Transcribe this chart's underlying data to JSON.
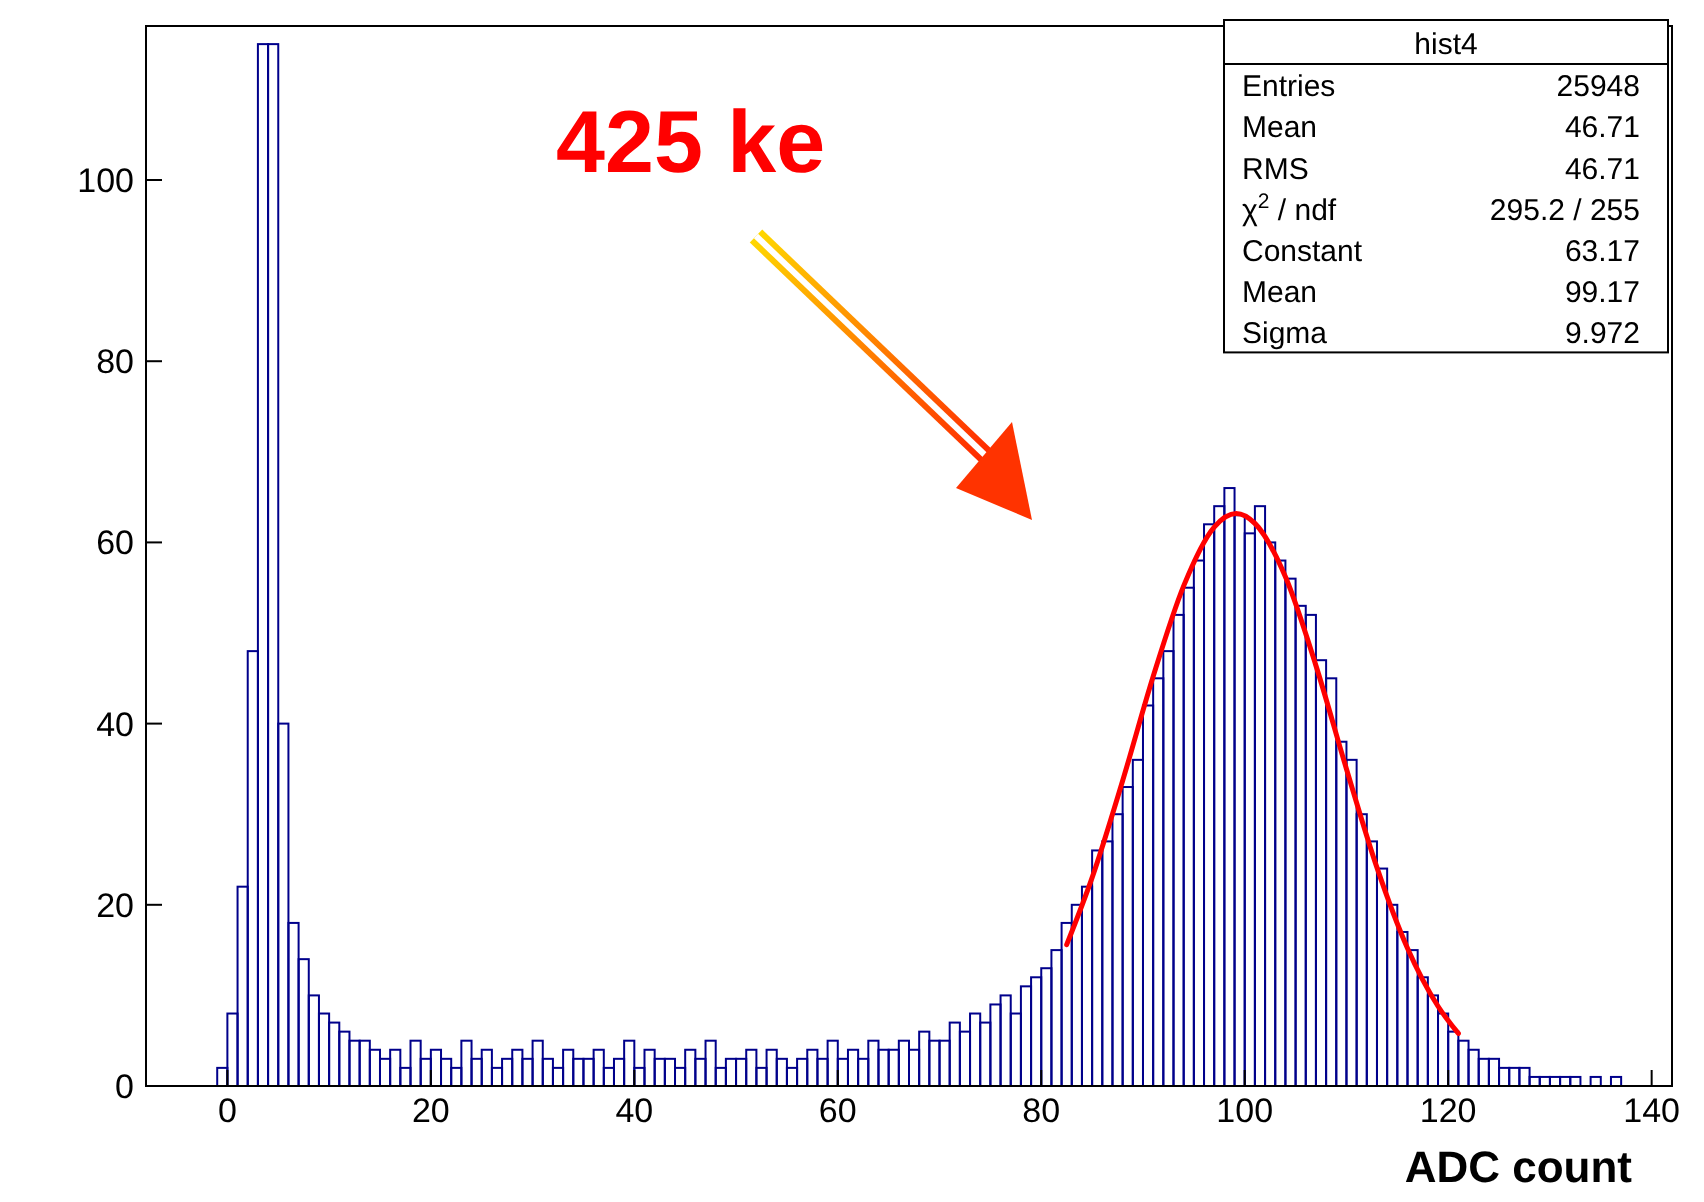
{
  "chart_data": {
    "type": "histogram",
    "xlabel": "ADC count",
    "xlim": [
      -8,
      142
    ],
    "ylim": [
      0,
      117
    ],
    "xticks": [
      0,
      20,
      40,
      60,
      80,
      100,
      120,
      140
    ],
    "yticks": [
      0,
      20,
      40,
      60,
      80,
      100
    ],
    "grid": false,
    "bins": [
      -2,
      -1,
      0,
      1,
      2,
      3,
      4,
      5,
      6,
      7,
      8,
      9,
      10,
      11,
      12,
      13,
      14,
      15,
      16,
      17,
      18,
      19,
      20,
      21,
      22,
      23,
      24,
      25,
      26,
      27,
      28,
      29,
      30,
      31,
      32,
      33,
      34,
      35,
      36,
      37,
      38,
      39,
      40,
      41,
      42,
      43,
      44,
      45,
      46,
      47,
      48,
      49,
      50,
      51,
      52,
      53,
      54,
      55,
      56,
      57,
      58,
      59,
      60,
      61,
      62,
      63,
      64,
      65,
      66,
      67,
      68,
      69,
      70,
      71,
      72,
      73,
      74,
      75,
      76,
      77,
      78,
      79,
      80,
      81,
      82,
      83,
      84,
      85,
      86,
      87,
      88,
      89,
      90,
      91,
      92,
      93,
      94,
      95,
      96,
      97,
      98,
      99,
      100,
      101,
      102,
      103,
      104,
      105,
      106,
      107,
      108,
      109,
      110,
      111,
      112,
      113,
      114,
      115,
      116,
      117,
      118,
      119,
      120,
      121,
      122,
      123,
      124,
      125,
      126,
      127,
      128,
      129,
      130,
      131,
      132,
      133,
      134,
      135,
      136,
      137,
      138
    ],
    "series": [
      {
        "color": "#00008b",
        "values": [
          0,
          2,
          8,
          22,
          48,
          115,
          115,
          40,
          18,
          14,
          10,
          8,
          7,
          6,
          5,
          5,
          4,
          3,
          4,
          2,
          5,
          3,
          4,
          3,
          2,
          5,
          3,
          4,
          2,
          3,
          4,
          3,
          5,
          3,
          2,
          4,
          3,
          3,
          4,
          2,
          3,
          5,
          2,
          4,
          3,
          3,
          2,
          4,
          3,
          5,
          2,
          3,
          3,
          4,
          2,
          4,
          3,
          2,
          3,
          4,
          3,
          5,
          3,
          4,
          3,
          5,
          4,
          4,
          5,
          4,
          6,
          5,
          5,
          7,
          6,
          8,
          7,
          9,
          10,
          8,
          11,
          12,
          13,
          15,
          18,
          20,
          22,
          26,
          27,
          30,
          33,
          36,
          42,
          45,
          48,
          52,
          55,
          58,
          62,
          64,
          66,
          63,
          61,
          64,
          60,
          58,
          56,
          53,
          52,
          47,
          45,
          38,
          36,
          30,
          27,
          24,
          20,
          17,
          15,
          12,
          10,
          8,
          6,
          5,
          4,
          3,
          3,
          2,
          2,
          2,
          1,
          1,
          1,
          1,
          1,
          0,
          1,
          0,
          1,
          0
        ]
      },
      {
        "type": "line",
        "color": "#ff0000",
        "x": [
          82.5,
          85,
          88,
          91,
          94,
          97,
          99.17,
          101,
          104,
          107,
          110,
          113,
          116,
          119,
          121
        ],
        "values": [
          15.6,
          23.0,
          33.7,
          45.2,
          55.2,
          61.7,
          63.2,
          62.1,
          56.2,
          46.4,
          35.0,
          24.1,
          15.2,
          8.8,
          5.8
        ]
      }
    ],
    "annotations": [
      "425 ke",
      "hist4",
      "Entries",
      "25948",
      "Mean",
      "46.71",
      "RMS",
      "46.71",
      "χ$^{2}$ / ndf",
      "295.2 / 255",
      "Constant",
      "63.17",
      "Mean",
      "99.17",
      "Sigma",
      "9.972"
    ]
  }
}
